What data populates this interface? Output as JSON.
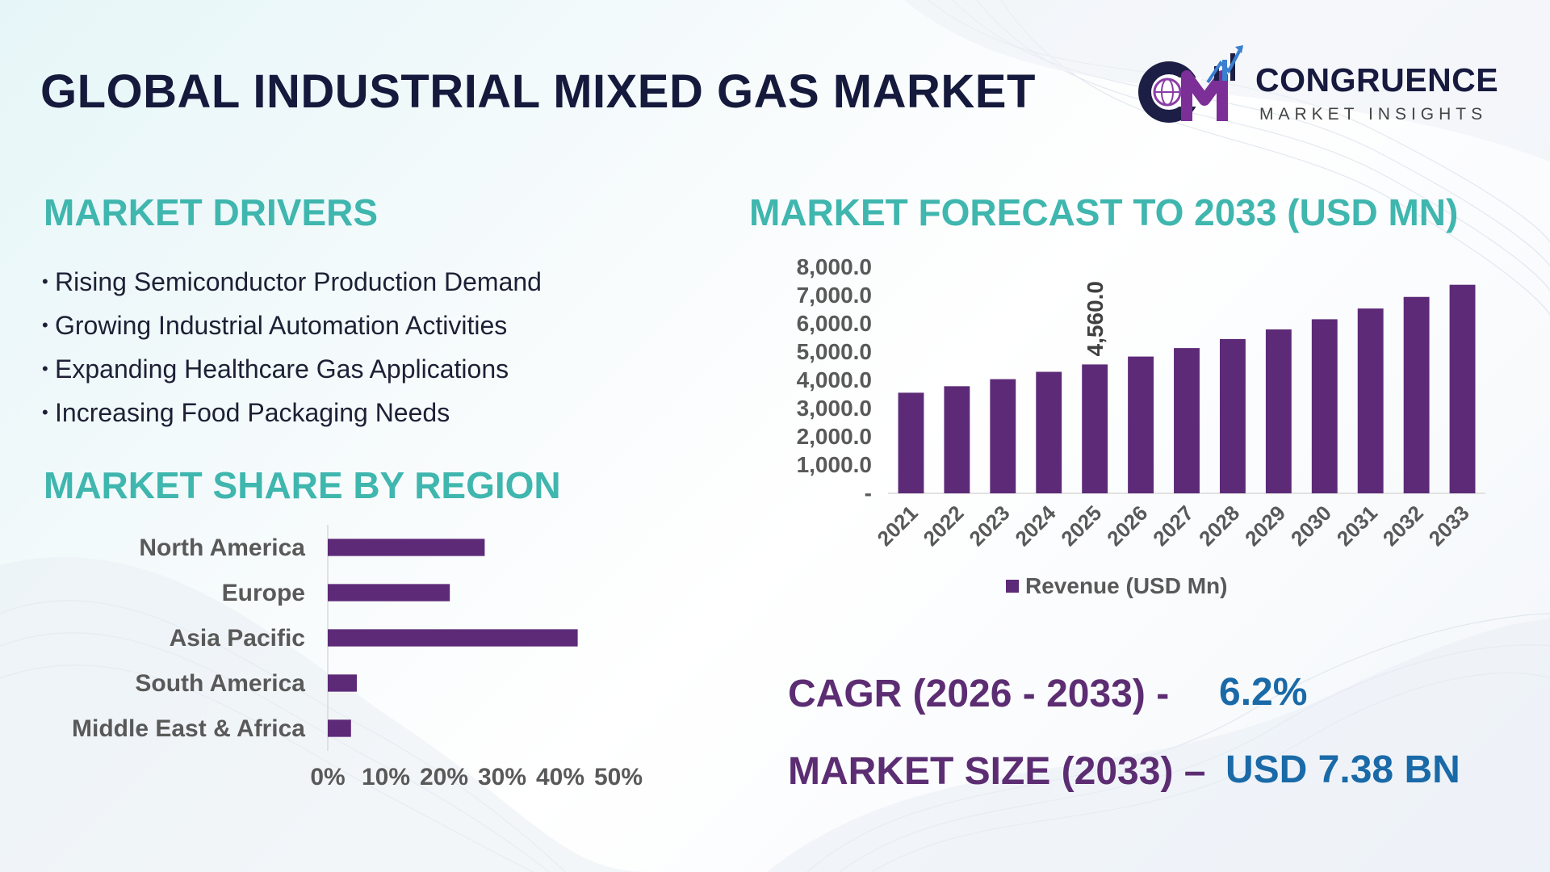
{
  "title": "GLOBAL INDUSTRIAL MIXED GAS MARKET",
  "logo": {
    "name": "CONGRUENCE",
    "subtitle": "MARKET INSIGHTS"
  },
  "drivers": {
    "title": "MARKET DRIVERS",
    "items": [
      "Rising Semiconductor Production Demand",
      "Growing Industrial Automation Activities",
      "Expanding Healthcare Gas Applications",
      "Increasing Food Packaging Needs"
    ]
  },
  "stats": {
    "cagr_label": "CAGR (2026 - 2033) -",
    "cagr_value": "6.2%",
    "size_label": "MARKET SIZE (2033) –",
    "size_value": "USD  7.38 BN"
  },
  "colors": {
    "bar": "#5d2a78",
    "accent": "#3fb6ae",
    "title": "#151a3d",
    "stat_label": "#5c2d72",
    "stat_value": "#1a6aa8"
  },
  "chart_data": [
    {
      "type": "bar",
      "orientation": "vertical",
      "title": "MARKET FORECAST TO 2033 (USD MN)",
      "categories": [
        "2021",
        "2022",
        "2023",
        "2024",
        "2025",
        "2026",
        "2027",
        "2028",
        "2029",
        "2030",
        "2031",
        "2032",
        "2033"
      ],
      "series": [
        {
          "name": "Revenue (USD Mn)",
          "values": [
            3560,
            3790,
            4040,
            4300,
            4560,
            4840,
            5140,
            5460,
            5800,
            6160,
            6540,
            6950,
            7380
          ]
        }
      ],
      "data_labels": [
        {
          "index": 4,
          "text": "4,560.0"
        }
      ],
      "y_ticks": [
        "-",
        "1,000.0",
        "2,000.0",
        "3,000.0",
        "4,000.0",
        "5,000.0",
        "6,000.0",
        "7,000.0",
        "8,000.0"
      ],
      "ylim": [
        0,
        8000
      ],
      "legend": "bottom",
      "grid": false
    },
    {
      "type": "bar",
      "orientation": "horizontal",
      "title": "MARKET SHARE BY REGION",
      "categories": [
        "North America",
        "Europe",
        "Asia Pacific",
        "South America",
        "Middle East & Africa"
      ],
      "values": [
        27,
        21,
        43,
        5,
        4
      ],
      "x_ticks": [
        "0%",
        "10%",
        "20%",
        "30%",
        "40%",
        "50%"
      ],
      "xlim": [
        0,
        50
      ],
      "grid": false
    }
  ]
}
